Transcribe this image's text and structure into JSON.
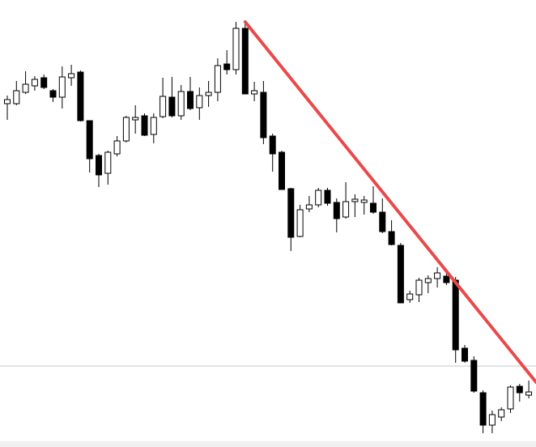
{
  "chart_data": {
    "type": "candlestick",
    "ylim": [
      0,
      552
    ],
    "up_color": "#ffffff",
    "down_color": "#000000",
    "outline_color": "#000000",
    "open": [
      424,
      424,
      438,
      446,
      456,
      440,
      432,
      456,
      463,
      403,
      360,
      338,
      362,
      378,
      404,
      409,
      386,
      408,
      432,
      409,
      439,
      419,
      434,
      438,
      473,
      466,
      517,
      436,
      438,
      384,
      364,
      319,
      260,
      294,
      299,
      317,
      302,
      284,
      303,
      302,
      301,
      290,
      266,
      249,
      182,
      188,
      203,
      208,
      211,
      206,
      122,
      107,
      67,
      27,
      37,
      47,
      75,
      64
    ],
    "high": [
      434,
      452,
      464,
      458,
      460,
      442,
      470,
      472,
      465,
      403,
      362,
      366,
      384,
      409,
      422,
      412,
      412,
      456,
      457,
      447,
      457,
      444,
      452,
      480,
      490,
      525,
      525,
      451,
      452,
      387,
      366,
      320,
      299,
      310,
      320,
      320,
      307,
      327,
      312,
      310,
      322,
      307,
      280,
      252,
      193,
      209,
      212,
      222,
      220,
      210,
      126,
      112,
      70,
      45,
      49,
      76,
      78,
      82
    ],
    "low": [
      404,
      422,
      436,
      440,
      442,
      426,
      418,
      446,
      402,
      339,
      321,
      324,
      359,
      376,
      387,
      384,
      375,
      406,
      407,
      404,
      416,
      404,
      420,
      427,
      460,
      460,
      436,
      427,
      374,
      340,
      318,
      242,
      259,
      290,
      296,
      298,
      265,
      282,
      284,
      287,
      288,
      264,
      249,
      178,
      178,
      179,
      190,
      197,
      200,
      104,
      104,
      67,
      17,
      17,
      32,
      42,
      56,
      60
    ],
    "close": [
      429,
      440,
      448,
      454,
      444,
      432,
      457,
      461,
      403,
      356,
      336,
      364,
      378,
      407,
      407,
      385,
      407,
      433,
      409,
      439,
      418,
      434,
      438,
      471,
      466,
      517,
      436,
      440,
      382,
      362,
      318,
      259,
      293,
      299,
      317,
      301,
      282,
      303,
      306,
      305,
      290,
      266,
      250,
      178,
      189,
      206,
      208,
      215,
      203,
      120,
      106,
      69,
      27,
      40,
      46,
      74,
      67,
      68
    ],
    "trend_line": {
      "color": "#e84a4a",
      "x": [
        26,
        57.8
      ],
      "values": [
        525,
        80
      ]
    },
    "horizontal_line": {
      "value": 100,
      "color": "#c8c8c8"
    }
  }
}
